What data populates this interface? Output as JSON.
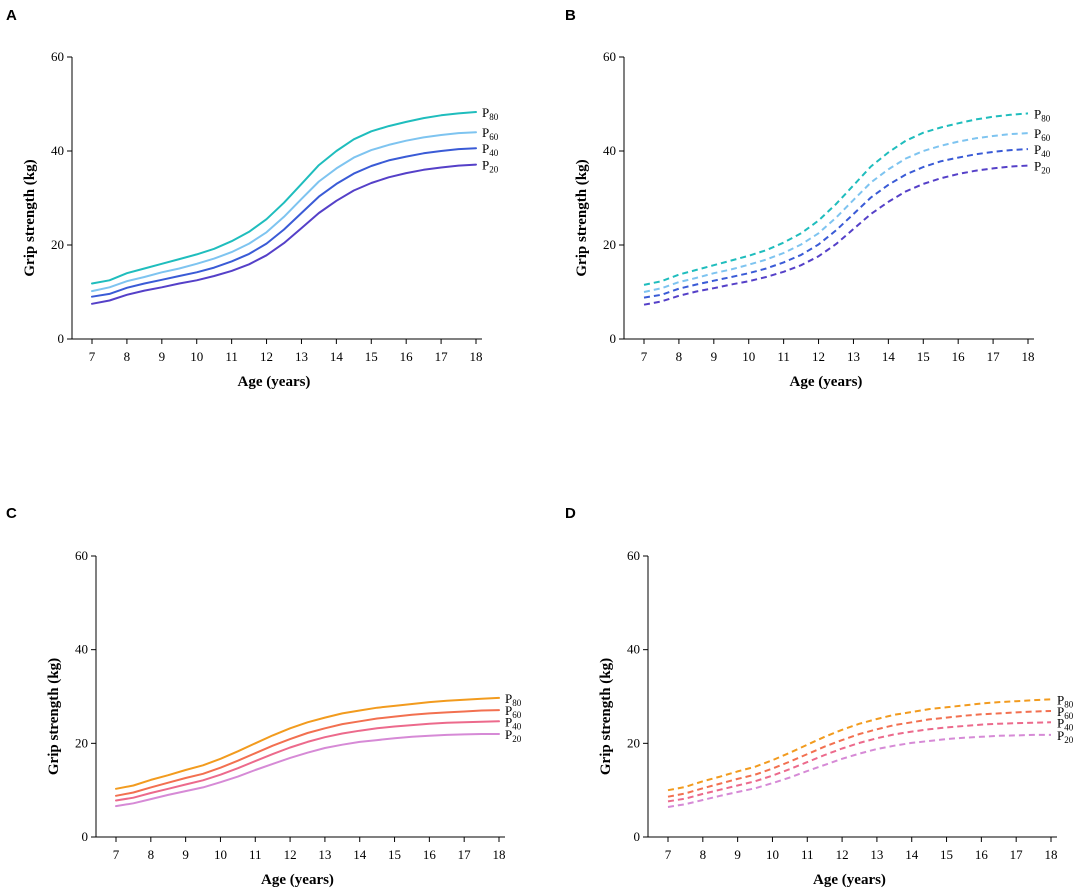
{
  "chart_data": [
    {
      "panel": "A",
      "type": "line",
      "line_style": "solid",
      "xlabel": "Age (years)",
      "ylabel": "Grip strength (kg)",
      "xlim": [
        7,
        18
      ],
      "ylim": [
        0,
        60
      ],
      "xticks": [
        7,
        8,
        9,
        10,
        11,
        12,
        13,
        14,
        15,
        16,
        17,
        18
      ],
      "yticks": [
        0,
        20,
        40,
        60
      ],
      "x": [
        7,
        7.5,
        8,
        8.5,
        9,
        9.5,
        10,
        10.5,
        11,
        11.5,
        12,
        12.5,
        13,
        13.5,
        14,
        14.5,
        15,
        15.5,
        16,
        16.5,
        17,
        17.5,
        18
      ],
      "series": [
        {
          "name": "P80",
          "label_main": "P",
          "label_sub": "80",
          "color": "#1fbdbd",
          "values": [
            11.8,
            12.5,
            14.0,
            15.0,
            16.0,
            17.0,
            18.0,
            19.2,
            20.8,
            22.8,
            25.5,
            29.0,
            33.0,
            37.0,
            40.0,
            42.5,
            44.2,
            45.3,
            46.2,
            47.0,
            47.6,
            48.0,
            48.3
          ]
        },
        {
          "name": "P60",
          "label_main": "P",
          "label_sub": "60",
          "color": "#7ec4f0",
          "values": [
            10.2,
            11.0,
            12.3,
            13.2,
            14.2,
            15.0,
            16.0,
            17.1,
            18.5,
            20.3,
            22.7,
            26.0,
            29.8,
            33.5,
            36.3,
            38.6,
            40.2,
            41.3,
            42.2,
            42.9,
            43.4,
            43.8,
            44.0
          ]
        },
        {
          "name": "P40",
          "label_main": "P",
          "label_sub": "40",
          "color": "#3a5bd6",
          "values": [
            9.0,
            9.6,
            10.9,
            11.8,
            12.6,
            13.4,
            14.2,
            15.2,
            16.5,
            18.1,
            20.3,
            23.3,
            26.8,
            30.3,
            33.0,
            35.2,
            36.8,
            38.0,
            38.8,
            39.5,
            40.0,
            40.4,
            40.6
          ]
        },
        {
          "name": "P20",
          "label_main": "P",
          "label_sub": "20",
          "color": "#5540c8",
          "values": [
            7.5,
            8.2,
            9.4,
            10.3,
            11.0,
            11.8,
            12.5,
            13.4,
            14.5,
            15.9,
            17.8,
            20.4,
            23.6,
            26.8,
            29.4,
            31.6,
            33.2,
            34.4,
            35.3,
            36.0,
            36.5,
            36.9,
            37.1
          ]
        }
      ]
    },
    {
      "panel": "B",
      "type": "line",
      "line_style": "dashed",
      "xlabel": "Age (years)",
      "ylabel": "Grip strength (kg)",
      "xlim": [
        7,
        18
      ],
      "ylim": [
        0,
        60
      ],
      "xticks": [
        7,
        8,
        9,
        10,
        11,
        12,
        13,
        14,
        15,
        16,
        17,
        18
      ],
      "yticks": [
        0,
        20,
        40,
        60
      ],
      "x": [
        7,
        7.5,
        8,
        8.5,
        9,
        9.5,
        10,
        10.5,
        11,
        11.5,
        12,
        12.5,
        13,
        13.5,
        14,
        14.5,
        15,
        15.5,
        16,
        16.5,
        17,
        17.5,
        18
      ],
      "series": [
        {
          "name": "P80",
          "label_main": "P",
          "label_sub": "80",
          "color": "#1fbdbd",
          "values": [
            11.5,
            12.3,
            13.7,
            14.7,
            15.7,
            16.7,
            17.7,
            18.9,
            20.5,
            22.5,
            25.2,
            28.7,
            32.7,
            36.7,
            39.7,
            42.2,
            43.9,
            45.0,
            45.9,
            46.7,
            47.3,
            47.7,
            48.0
          ]
        },
        {
          "name": "P60",
          "label_main": "P",
          "label_sub": "60",
          "color": "#7ec4f0",
          "values": [
            10.0,
            10.8,
            12.1,
            13.0,
            14.0,
            14.8,
            15.8,
            16.9,
            18.3,
            20.1,
            22.5,
            25.8,
            29.6,
            33.3,
            36.1,
            38.4,
            40.0,
            41.1,
            42.0,
            42.7,
            43.2,
            43.6,
            43.8
          ]
        },
        {
          "name": "P40",
          "label_main": "P",
          "label_sub": "40",
          "color": "#3a5bd6",
          "values": [
            8.8,
            9.4,
            10.7,
            11.6,
            12.4,
            13.2,
            14.0,
            15.0,
            16.3,
            17.9,
            20.1,
            23.1,
            26.6,
            30.1,
            32.8,
            35.0,
            36.6,
            37.8,
            38.6,
            39.3,
            39.8,
            40.2,
            40.4
          ]
        },
        {
          "name": "P20",
          "label_main": "P",
          "label_sub": "20",
          "color": "#5540c8",
          "values": [
            7.3,
            8.0,
            9.2,
            10.1,
            10.8,
            11.6,
            12.3,
            13.2,
            14.3,
            15.7,
            17.6,
            20.2,
            23.4,
            26.6,
            29.2,
            31.4,
            33.0,
            34.2,
            35.1,
            35.8,
            36.3,
            36.7,
            36.9
          ]
        }
      ]
    },
    {
      "panel": "C",
      "type": "line",
      "line_style": "solid",
      "xlabel": "Age (years)",
      "ylabel": "Grip strength (kg)",
      "xlim": [
        7,
        18
      ],
      "ylim": [
        0,
        60
      ],
      "xticks": [
        7,
        8,
        9,
        10,
        11,
        12,
        13,
        14,
        15,
        16,
        17,
        18
      ],
      "yticks": [
        0,
        20,
        40,
        60
      ],
      "x": [
        7,
        7.5,
        8,
        8.5,
        9,
        9.5,
        10,
        10.5,
        11,
        11.5,
        12,
        12.5,
        13,
        13.5,
        14,
        14.5,
        15,
        15.5,
        16,
        16.5,
        17,
        17.5,
        18
      ],
      "series": [
        {
          "name": "P80",
          "label_main": "P",
          "label_sub": "80",
          "color": "#f29b1e",
          "values": [
            10.3,
            11.0,
            12.2,
            13.2,
            14.3,
            15.3,
            16.7,
            18.3,
            20.0,
            21.7,
            23.2,
            24.5,
            25.5,
            26.4,
            27.0,
            27.6,
            28.0,
            28.4,
            28.8,
            29.1,
            29.3,
            29.5,
            29.7
          ]
        },
        {
          "name": "P60",
          "label_main": "P",
          "label_sub": "60",
          "color": "#f27050",
          "values": [
            8.8,
            9.5,
            10.6,
            11.6,
            12.6,
            13.5,
            14.8,
            16.3,
            17.9,
            19.5,
            20.9,
            22.2,
            23.2,
            24.1,
            24.7,
            25.3,
            25.7,
            26.1,
            26.4,
            26.6,
            26.8,
            27.0,
            27.1
          ]
        },
        {
          "name": "P40",
          "label_main": "P",
          "label_sub": "40",
          "color": "#ec6a8c",
          "values": [
            7.8,
            8.4,
            9.4,
            10.3,
            11.2,
            12.1,
            13.3,
            14.7,
            16.2,
            17.7,
            19.1,
            20.3,
            21.3,
            22.1,
            22.7,
            23.2,
            23.6,
            23.9,
            24.2,
            24.4,
            24.5,
            24.6,
            24.7
          ]
        },
        {
          "name": "P20",
          "label_main": "P",
          "label_sub": "20",
          "color": "#d68ad6",
          "values": [
            6.6,
            7.2,
            8.1,
            9.0,
            9.8,
            10.6,
            11.7,
            12.9,
            14.3,
            15.6,
            16.9,
            18.0,
            19.0,
            19.7,
            20.3,
            20.7,
            21.1,
            21.4,
            21.6,
            21.8,
            21.9,
            22.0,
            22.0
          ]
        }
      ]
    },
    {
      "panel": "D",
      "type": "line",
      "line_style": "dashed",
      "xlabel": "Age (years)",
      "ylabel": "Grip strength (kg)",
      "xlim": [
        7,
        18
      ],
      "ylim": [
        0,
        60
      ],
      "xticks": [
        7,
        8,
        9,
        10,
        11,
        12,
        13,
        14,
        15,
        16,
        17,
        18
      ],
      "yticks": [
        0,
        20,
        40,
        60
      ],
      "x": [
        7,
        7.5,
        8,
        8.5,
        9,
        9.5,
        10,
        10.5,
        11,
        11.5,
        12,
        12.5,
        13,
        13.5,
        14,
        14.5,
        15,
        15.5,
        16,
        16.5,
        17,
        17.5,
        18
      ],
      "series": [
        {
          "name": "P80",
          "label_main": "P",
          "label_sub": "80",
          "color": "#f29b1e",
          "values": [
            10.0,
            10.7,
            11.9,
            12.9,
            14.0,
            15.0,
            16.4,
            18.0,
            19.7,
            21.4,
            22.9,
            24.2,
            25.2,
            26.1,
            26.7,
            27.3,
            27.7,
            28.1,
            28.5,
            28.8,
            29.0,
            29.2,
            29.4
          ]
        },
        {
          "name": "P60",
          "label_main": "P",
          "label_sub": "60",
          "color": "#f27050",
          "values": [
            8.6,
            9.3,
            10.4,
            11.4,
            12.4,
            13.3,
            14.6,
            16.1,
            17.7,
            19.3,
            20.7,
            22.0,
            23.0,
            23.9,
            24.5,
            25.1,
            25.5,
            25.9,
            26.2,
            26.4,
            26.6,
            26.8,
            26.9
          ]
        },
        {
          "name": "P40",
          "label_main": "P",
          "label_sub": "40",
          "color": "#ec6a8c",
          "values": [
            7.6,
            8.2,
            9.2,
            10.1,
            11.0,
            11.9,
            13.1,
            14.5,
            16.0,
            17.5,
            18.9,
            20.1,
            21.1,
            21.9,
            22.5,
            23.0,
            23.4,
            23.7,
            24.0,
            24.2,
            24.3,
            24.4,
            24.5
          ]
        },
        {
          "name": "P20",
          "label_main": "P",
          "label_sub": "20",
          "color": "#d68ad6",
          "values": [
            6.4,
            7.0,
            7.9,
            8.8,
            9.6,
            10.4,
            11.5,
            12.7,
            14.1,
            15.4,
            16.7,
            17.8,
            18.8,
            19.5,
            20.1,
            20.5,
            20.9,
            21.2,
            21.4,
            21.6,
            21.7,
            21.8,
            21.8
          ]
        }
      ]
    }
  ]
}
